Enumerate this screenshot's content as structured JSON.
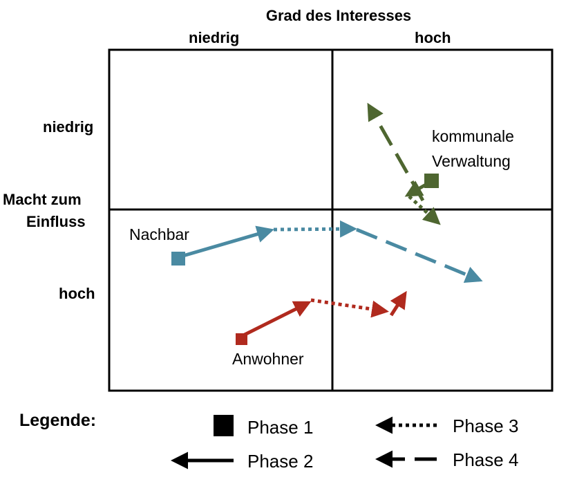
{
  "diagram": {
    "title": "Grad des Interesses",
    "columns": [
      "niedrig",
      "hoch"
    ],
    "rows": [
      "niedrig",
      "hoch"
    ],
    "y_axis_label_line1": "Macht zum",
    "y_axis_label_line2": "Einfluss"
  },
  "stakeholders": {
    "nachbar": {
      "name": "Nachbar",
      "color": "#4a8aa2"
    },
    "anwohner": {
      "name": "Anwohner",
      "color": "#b02a1e"
    },
    "kommunale": {
      "name_line1": "kommunale",
      "name_line2": "Verwaltung",
      "color": "#4e6630"
    }
  },
  "legend": {
    "title": "Legende:",
    "phase1": "Phase 1",
    "phase2": "Phase 2",
    "phase3": "Phase 3",
    "phase4": "Phase 4"
  }
}
